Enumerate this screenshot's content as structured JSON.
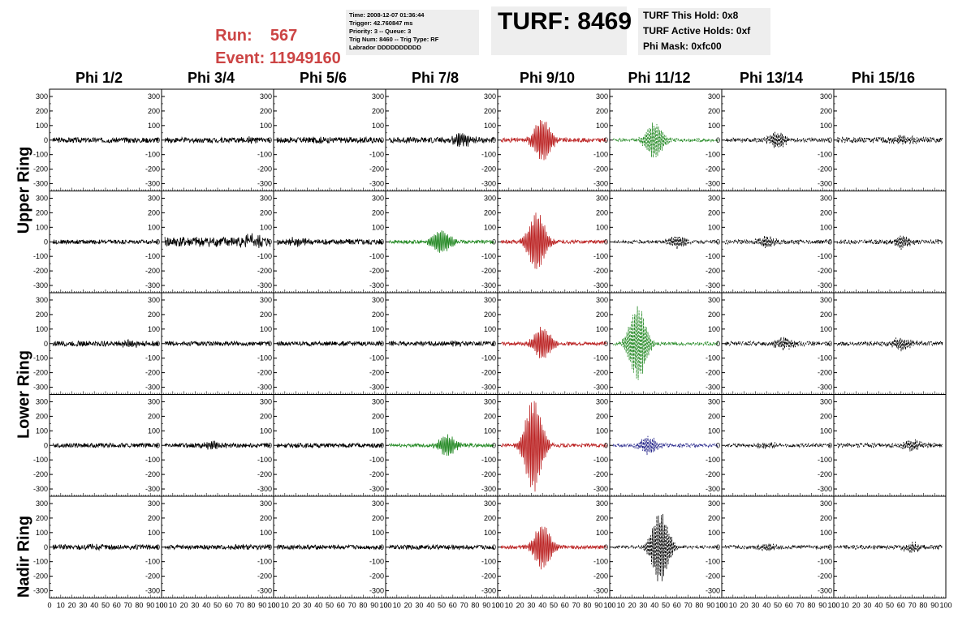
{
  "header": {
    "run_label": "Run:",
    "run_value": "567",
    "event_label": "Event:",
    "event_value": "11949160",
    "info_lines": [
      "Time: 2008-12-07 01:36:44",
      "Trigger: 42.760847 ms",
      "Priority: 3 -- Queue: 3",
      "Trig Num: 8460 -- Trig Type: RF",
      "Labrador DDDDDDDDDD"
    ],
    "turf_title": "TURF: 8469",
    "turf_lines": [
      "TURF This Hold: 0x8",
      "TURF Active Holds: 0xf",
      "Phi Mask: 0xfc00"
    ]
  },
  "colors": {
    "normal": "#000000",
    "red": "#bb2222",
    "green": "#228822",
    "blue": "#222288",
    "run_text": "#cc4444"
  },
  "chart_data": {
    "type": "line",
    "columns": [
      "Phi 1/2",
      "Phi 3/4",
      "Phi 5/6",
      "Phi 7/8",
      "Phi 9/10",
      "Phi 11/12",
      "Phi 13/14",
      "Phi 15/16"
    ],
    "ring_labels": [
      "Upper Ring",
      "Lower Ring",
      "Nadir Ring"
    ],
    "rows": 5,
    "xlim": [
      0,
      100
    ],
    "ylim": [
      -350,
      350
    ],
    "yticks": [
      -300,
      -200,
      -100,
      0,
      100,
      200,
      300
    ],
    "xticks": [
      0,
      10,
      20,
      30,
      40,
      50,
      60,
      70,
      80,
      90,
      100
    ],
    "panels": [
      [
        {
          "color": "normal",
          "style": "solid",
          "amp": 18,
          "burst": 0,
          "center": 50
        },
        {
          "color": "normal",
          "style": "solid",
          "amp": 18,
          "burst": 10,
          "center": 80
        },
        {
          "color": "normal",
          "style": "solid",
          "amp": 20,
          "burst": 5,
          "center": 40
        },
        {
          "color": "normal",
          "style": "solid",
          "amp": 20,
          "burst": 40,
          "center": 70
        },
        {
          "color": "red",
          "style": "solid",
          "amp": 15,
          "burst": 140,
          "center": 40
        },
        {
          "color": "green",
          "style": "dashed",
          "amp": 12,
          "burst": 120,
          "center": 40
        },
        {
          "color": "normal",
          "style": "dashed",
          "amp": 15,
          "burst": 50,
          "center": 50
        },
        {
          "color": "normal",
          "style": "dashed",
          "amp": 20,
          "burst": 30,
          "center": 60
        }
      ],
      [
        {
          "color": "normal",
          "style": "solid",
          "amp": 15,
          "burst": 0,
          "center": 50
        },
        {
          "color": "normal",
          "style": "solid",
          "amp": 35,
          "burst": 30,
          "center": 80
        },
        {
          "color": "normal",
          "style": "solid",
          "amp": 20,
          "burst": 20,
          "center": 20
        },
        {
          "color": "green",
          "style": "solid",
          "amp": 12,
          "burst": 80,
          "center": 50
        },
        {
          "color": "red",
          "style": "solid",
          "amp": 12,
          "burst": 200,
          "center": 35
        },
        {
          "color": "normal",
          "style": "dashed",
          "amp": 12,
          "burst": 40,
          "center": 60
        },
        {
          "color": "normal",
          "style": "dashed",
          "amp": 15,
          "burst": 30,
          "center": 40
        },
        {
          "color": "normal",
          "style": "dashed",
          "amp": 15,
          "burst": 40,
          "center": 60
        }
      ],
      [
        {
          "color": "normal",
          "style": "solid",
          "amp": 18,
          "burst": 20,
          "center": 70
        },
        {
          "color": "normal",
          "style": "solid",
          "amp": 15,
          "burst": 0,
          "center": 50
        },
        {
          "color": "normal",
          "style": "solid",
          "amp": 15,
          "burst": 0,
          "center": 50
        },
        {
          "color": "normal",
          "style": "solid",
          "amp": 15,
          "burst": 10,
          "center": 60
        },
        {
          "color": "red",
          "style": "solid",
          "amp": 12,
          "burst": 110,
          "center": 40
        },
        {
          "color": "green",
          "style": "dashed",
          "amp": 12,
          "burst": 260,
          "center": 25
        },
        {
          "color": "normal",
          "style": "dashed",
          "amp": 15,
          "burst": 40,
          "center": 55
        },
        {
          "color": "normal",
          "style": "dashed",
          "amp": 15,
          "burst": 40,
          "center": 60
        }
      ],
      [
        {
          "color": "normal",
          "style": "solid",
          "amp": 15,
          "burst": 0,
          "center": 50
        },
        {
          "color": "normal",
          "style": "solid",
          "amp": 15,
          "burst": 20,
          "center": 45
        },
        {
          "color": "normal",
          "style": "solid",
          "amp": 15,
          "burst": 0,
          "center": 50
        },
        {
          "color": "green",
          "style": "solid",
          "amp": 12,
          "burst": 70,
          "center": 55
        },
        {
          "color": "red",
          "style": "solid",
          "amp": 12,
          "burst": 320,
          "center": 32
        },
        {
          "color": "blue",
          "style": "dashed",
          "amp": 12,
          "burst": 60,
          "center": 35
        },
        {
          "color": "normal",
          "style": "dashed",
          "amp": 12,
          "burst": 20,
          "center": 40
        },
        {
          "color": "normal",
          "style": "dashed",
          "amp": 15,
          "burst": 30,
          "center": 70
        }
      ],
      [
        {
          "color": "normal",
          "style": "solid",
          "amp": 18,
          "burst": 10,
          "center": 40
        },
        {
          "color": "normal",
          "style": "solid",
          "amp": 15,
          "burst": 10,
          "center": 70
        },
        {
          "color": "normal",
          "style": "solid",
          "amp": 15,
          "burst": 0,
          "center": 50
        },
        {
          "color": "normal",
          "style": "solid",
          "amp": 15,
          "burst": 10,
          "center": 60
        },
        {
          "color": "red",
          "style": "solid",
          "amp": 12,
          "burst": 150,
          "center": 40
        },
        {
          "color": "normal",
          "style": "dashed",
          "amp": 10,
          "burst": 240,
          "center": 45
        },
        {
          "color": "normal",
          "style": "dashed",
          "amp": 12,
          "burst": 20,
          "center": 40
        },
        {
          "color": "normal",
          "style": "dashed",
          "amp": 15,
          "burst": 30,
          "center": 70
        }
      ]
    ]
  }
}
